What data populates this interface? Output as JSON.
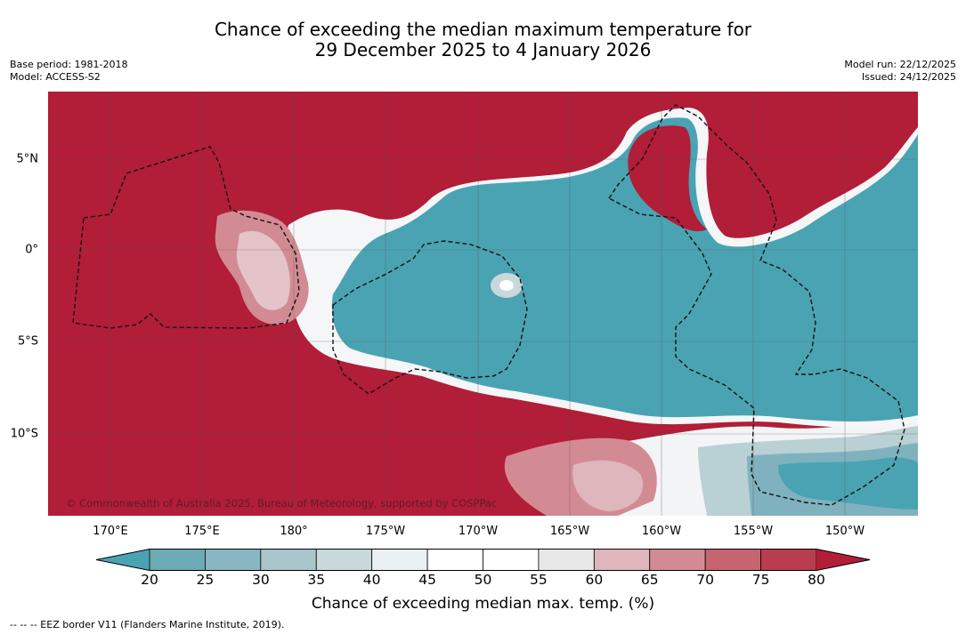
{
  "title": {
    "line1": "Chance of exceeding the median maximum temperature for",
    "line2": "29 December 2025 to 4 January 2026"
  },
  "meta": {
    "base_period": "Base period: 1981-2018",
    "model": "Model: ACCESS-S2",
    "model_run": "Model run: 22/12/2025",
    "issued": "Issued: 24/12/2025"
  },
  "map": {
    "copyright": "© Commonwealth of Australia 2025, Bureau of Meteorology, supported by COSPPac",
    "lon_labels": [
      "170°E",
      "175°E",
      "180°",
      "175°W",
      "170°W",
      "165°W",
      "160°W",
      "155°W",
      "150°W"
    ],
    "lat_labels": [
      "5°N",
      "0°",
      "5°S",
      "10°S"
    ]
  },
  "colorbar": {
    "ticks": [
      "20",
      "25",
      "30",
      "35",
      "40",
      "45",
      "50",
      "55",
      "60",
      "65",
      "70",
      "75",
      "80"
    ],
    "colors": [
      "#4aa3b3",
      "#6caab5",
      "#88b7c2",
      "#a8c6cb",
      "#c9d8da",
      "#ebf0f2",
      "#ffffff",
      "#ffffff",
      "#e8e8e8",
      "#deb6bc",
      "#d38b93",
      "#c6656f",
      "#b93d4e",
      "#b21d38"
    ],
    "title": "Chance of exceeding median max. temp. (%)"
  },
  "legend": {
    "text": "--  --  -- EEZ border V11 (Flanders Marine Institute, 2019)."
  }
}
